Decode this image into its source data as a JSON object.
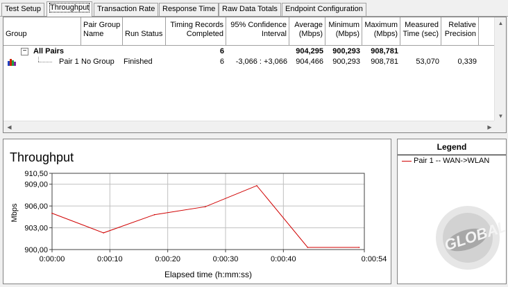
{
  "tabs": [
    {
      "label": "Test Setup",
      "active": false
    },
    {
      "label": "Throughput",
      "active": true
    },
    {
      "label": "Transaction Rate",
      "active": false
    },
    {
      "label": "Response Time",
      "active": false
    },
    {
      "label": "Raw Data Totals",
      "active": false
    },
    {
      "label": "Endpoint Configuration",
      "active": false
    }
  ],
  "table": {
    "headers": {
      "group": "Group",
      "pair_group_name": "Pair Group\nName",
      "run_status": "Run Status",
      "timing_records": "Timing Records\nCompleted",
      "confidence": "95% Confidence\nInterval",
      "average": "Average\n(Mbps)",
      "minimum": "Minimum\n(Mbps)",
      "maximum": "Maximum\n(Mbps)",
      "measured_time": "Measured\nTime (sec)",
      "relative_precision": "Relative\nPrecision"
    },
    "all_pairs": {
      "expander": "−",
      "label": "All Pairs",
      "records": "6",
      "average": "904,295",
      "minimum": "900,293",
      "maximum": "908,781"
    },
    "pair1": {
      "icon": "pair-chart-icon",
      "label": "Pair 1",
      "group_name": "No Group",
      "status": "Finished",
      "records": "6",
      "confidence": "-3,066 : +3,066",
      "average": "904,466",
      "minimum": "900,293",
      "maximum": "908,781",
      "measured_time": "53,070",
      "relative_precision": "0,339"
    }
  },
  "chart": {
    "title": "Throughput",
    "ylabel": "Mbps",
    "xlabel": "Elapsed time (h:mm:ss)"
  },
  "chart_data": {
    "type": "line",
    "title": "Throughput",
    "xlabel": "Elapsed time (h:mm:ss)",
    "ylabel": "Mbps",
    "ylim": [
      900.0,
      910.5
    ],
    "yticks": [
      "910,50",
      "909,00",
      "906,00",
      "903,00",
      "900,00"
    ],
    "ytick_values": [
      910.5,
      909.0,
      906.0,
      903.0,
      900.0
    ],
    "xlim": [
      0,
      54
    ],
    "xticks": [
      "0:00:00",
      "0:00:10",
      "0:00:20",
      "0:00:30",
      "0:00:40",
      "0:00:54"
    ],
    "xtick_values": [
      0,
      10,
      20,
      30,
      40,
      54
    ],
    "grid": true,
    "series": [
      {
        "name": "Pair 1 -- WAN->WLAN",
        "color": "#d00000",
        "x": [
          0,
          8.9,
          17.7,
          26.5,
          35.4,
          44.2,
          53.1
        ],
        "y": [
          905.0,
          902.3,
          904.8,
          905.9,
          908.8,
          900.3,
          900.3
        ]
      }
    ]
  },
  "legend": {
    "title": "Legend",
    "items": [
      "Pair 1 -- WAN->WLAN"
    ]
  },
  "colors": {
    "series": "#d00000",
    "grid": "#c0c0c0",
    "accent_icon": "#cc2200"
  }
}
